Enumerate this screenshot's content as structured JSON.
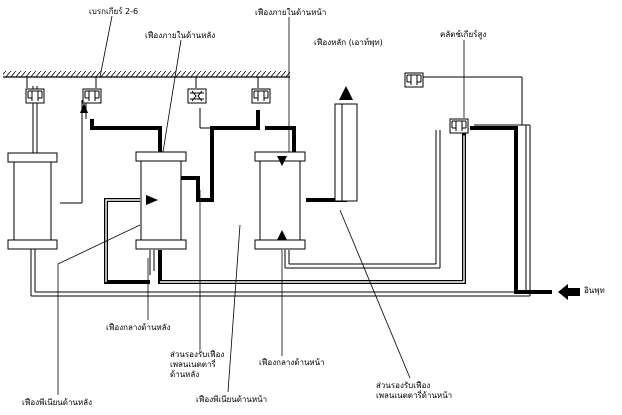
{
  "labels": {
    "brake_2_6": "เบรกเกียร์ 2-6",
    "rear_ring_gear": "เฟืองภายในด้านหลัง",
    "front_ring_gear": "เฟืองภายในด้านหน้า",
    "main_gear_output": "เฟืองหลัก (เอาท์พุท)",
    "high_clutch": "คลัตช์เกียร์สูง",
    "input": "อินพุท",
    "rear_sun_gear": "เฟืองกลางด้านหลัง",
    "rear_carrier": "ส่วนรองรับเฟือง\nเพลนเนตตารี่\nด้านหลัง",
    "front_sun_gear": "เฟืองกลางด้านหน้า",
    "front_carrier": "ส่วนรองรับเฟือง\nเพลนเนตตารี่ด้านหน้า",
    "rear_pinion": "เฟืองพีเนียนด้านหลัง",
    "front_pinion": "เฟืองพีเนียนด้านหน้า"
  },
  "colors": {
    "line": "#000000",
    "power_flow": "#000000",
    "background": "#ffffff"
  }
}
